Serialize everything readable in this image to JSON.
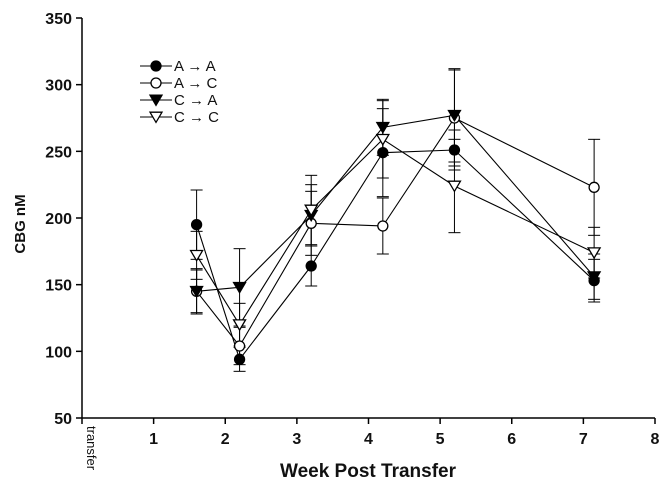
{
  "chart_data": {
    "type": "line",
    "xlabel": "Week Post Transfer",
    "ylabel": "CBG nM",
    "xlim": [
      0,
      8
    ],
    "ylim": [
      50,
      350
    ],
    "xticks": [
      "transfer",
      "1",
      "2",
      "3",
      "4",
      "5",
      "6",
      "7",
      "8"
    ],
    "yticks": [
      "50",
      "100",
      "150",
      "200",
      "250",
      "300",
      "350"
    ],
    "legend_placement": "top-left",
    "grid": false,
    "series": [
      {
        "name": "A → A",
        "marker": "filled-circle",
        "x": [
          1.6,
          2.2,
          3.2,
          4.2,
          5.2,
          7.15
        ],
        "y": [
          195,
          94,
          164,
          249,
          251,
          153
        ],
        "err": [
          26,
          9,
          15,
          33,
          15,
          16
        ]
      },
      {
        "name": "A → C",
        "marker": "open-circle",
        "x": [
          1.6,
          2.2,
          3.2,
          4.2,
          5.2,
          7.15
        ],
        "y": [
          145,
          104,
          196,
          194,
          275,
          223
        ],
        "err": [
          16,
          14,
          24,
          21,
          36,
          36
        ]
      },
      {
        "name": "C → A",
        "marker": "filled-triangle-down",
        "x": [
          1.6,
          2.2,
          3.2,
          4.2,
          5.2,
          7.15
        ],
        "y": [
          145,
          148,
          202,
          268,
          277,
          156
        ],
        "err": [
          17,
          29,
          23,
          21,
          35,
          17
        ]
      },
      {
        "name": "C → C",
        "marker": "open-triangle-down",
        "x": [
          1.6,
          2.2,
          3.2,
          4.2,
          5.2,
          7.15
        ],
        "y": [
          172,
          120,
          206,
          259,
          224,
          174
        ],
        "err": [
          18,
          16,
          26,
          29,
          35,
          19
        ]
      }
    ]
  }
}
